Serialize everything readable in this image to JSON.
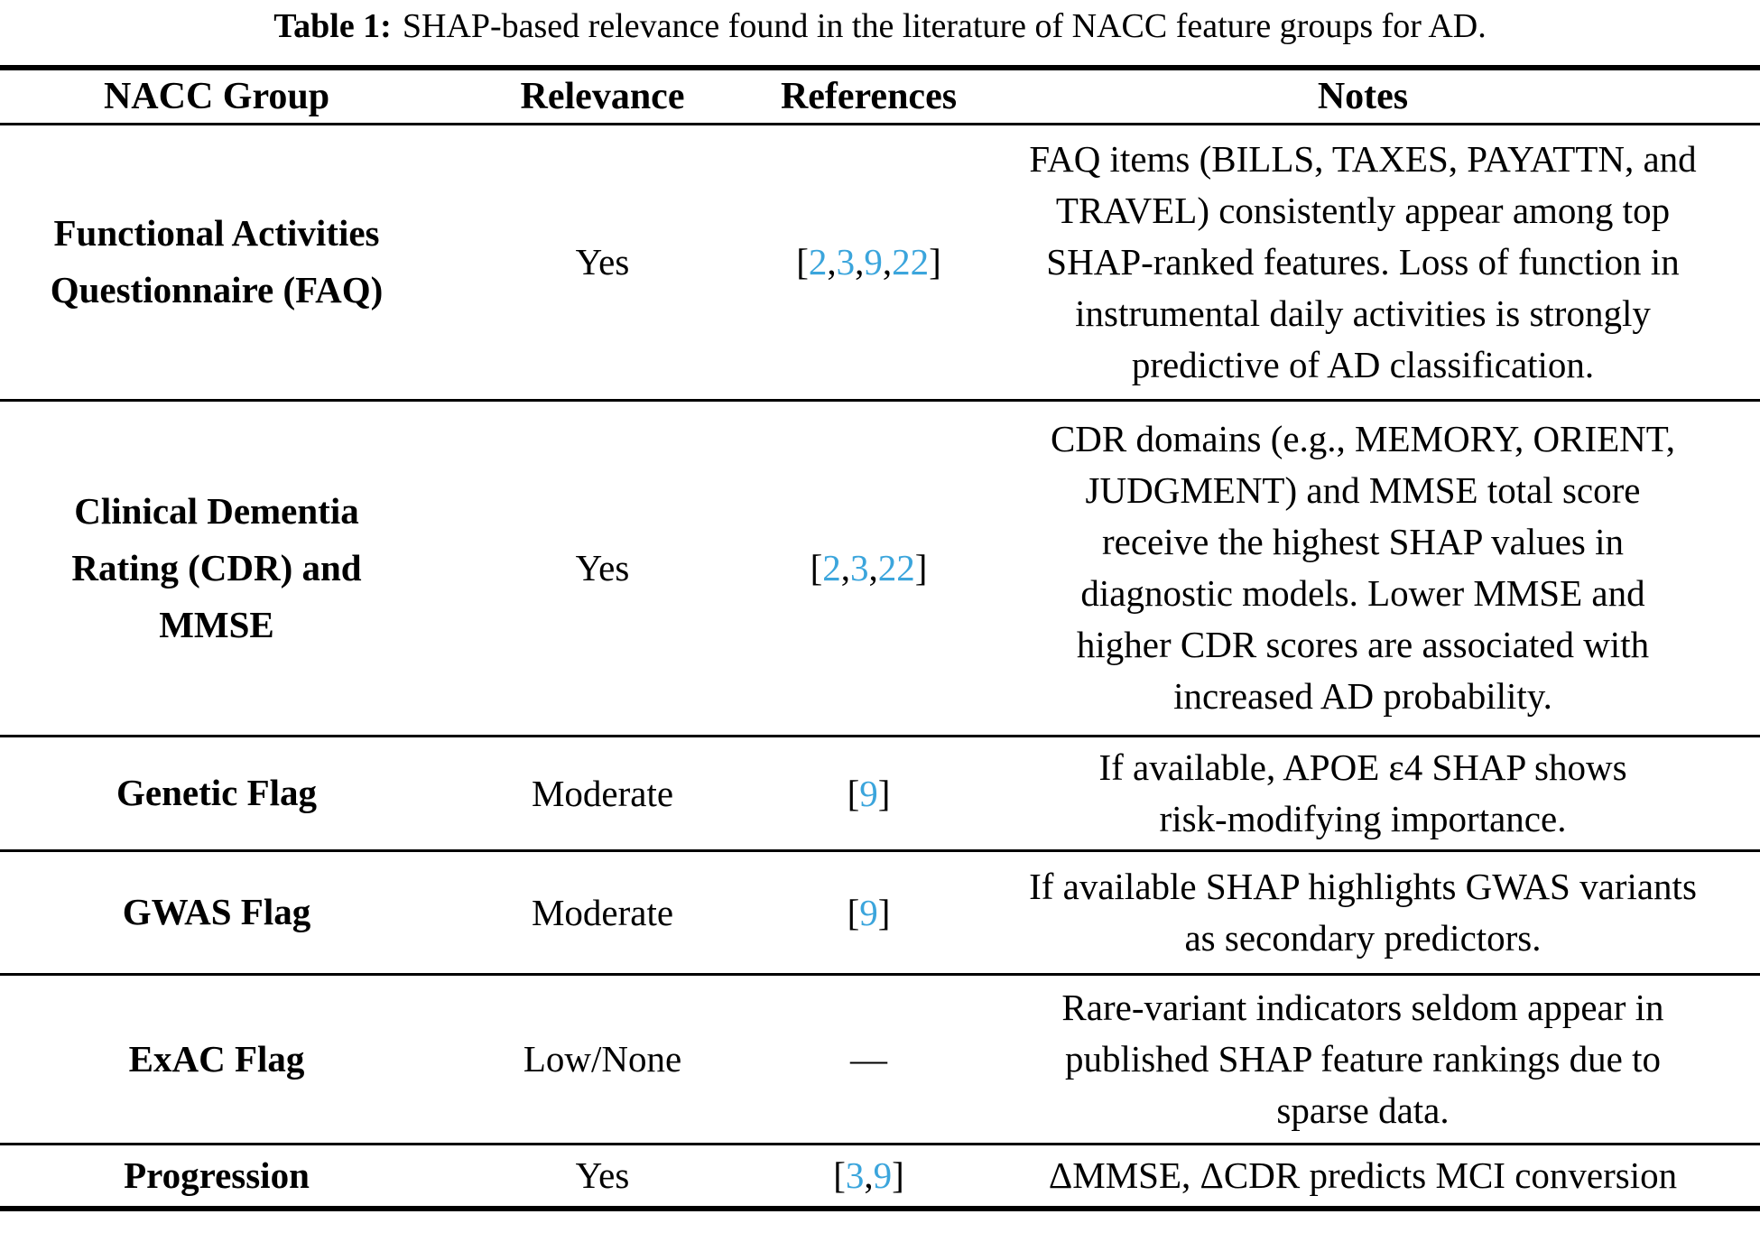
{
  "caption": {
    "label": "Table 1:",
    "text": "SHAP-based relevance found in the literature of NACC feature groups for AD."
  },
  "table": {
    "headers": [
      "NACC Group",
      "Relevance",
      "References",
      "Notes"
    ],
    "ref_open": "[",
    "ref_close": "]",
    "ref_separator": ",",
    "no_refs": "—",
    "link_color": "#3BA5DC",
    "rows": [
      {
        "group_lines": [
          "Functional Activities",
          "Questionnaire (FAQ)"
        ],
        "relevance": "Yes",
        "refs": [
          "2",
          "3",
          "9",
          "22"
        ],
        "notes_lines": [
          "FAQ items (BILLS, TAXES, PAYATTN, and",
          "TRAVEL) consistently appear among top",
          "SHAP-ranked features. Loss of function in",
          "instrumental daily activities is strongly",
          "predictive of AD classification."
        ]
      },
      {
        "group_lines": [
          "Clinical Dementia",
          "Rating (CDR) and",
          "MMSE"
        ],
        "relevance": "Yes",
        "refs": [
          "2",
          "3",
          "22"
        ],
        "notes_lines": [
          "CDR domains (e.g., MEMORY, ORIENT,",
          "JUDGMENT) and MMSE total score",
          "receive the highest SHAP values in",
          "diagnostic models. Lower MMSE and",
          "higher CDR scores are associated with",
          "increased AD probability."
        ]
      },
      {
        "group_lines": [
          "Genetic Flag"
        ],
        "relevance": "Moderate",
        "refs": [
          "9"
        ],
        "notes_lines": [
          "If available, APOE ε4 SHAP shows",
          "risk-modifying importance."
        ]
      },
      {
        "group_lines": [
          "GWAS Flag"
        ],
        "relevance": "Moderate",
        "refs": [
          "9"
        ],
        "notes_lines": [
          "If available SHAP highlights GWAS variants",
          "as secondary predictors."
        ]
      },
      {
        "group_lines": [
          "ExAC Flag"
        ],
        "relevance": "Low/None",
        "refs": null,
        "notes_lines": [
          "Rare-variant indicators seldom appear in",
          "published SHAP feature rankings due to",
          "sparse data."
        ]
      },
      {
        "group_lines": [
          "Progression"
        ],
        "relevance": "Yes",
        "refs": [
          "3",
          "9"
        ],
        "notes_lines": [
          "ΔMMSE, ΔCDR predicts MCI conversion"
        ]
      }
    ]
  }
}
